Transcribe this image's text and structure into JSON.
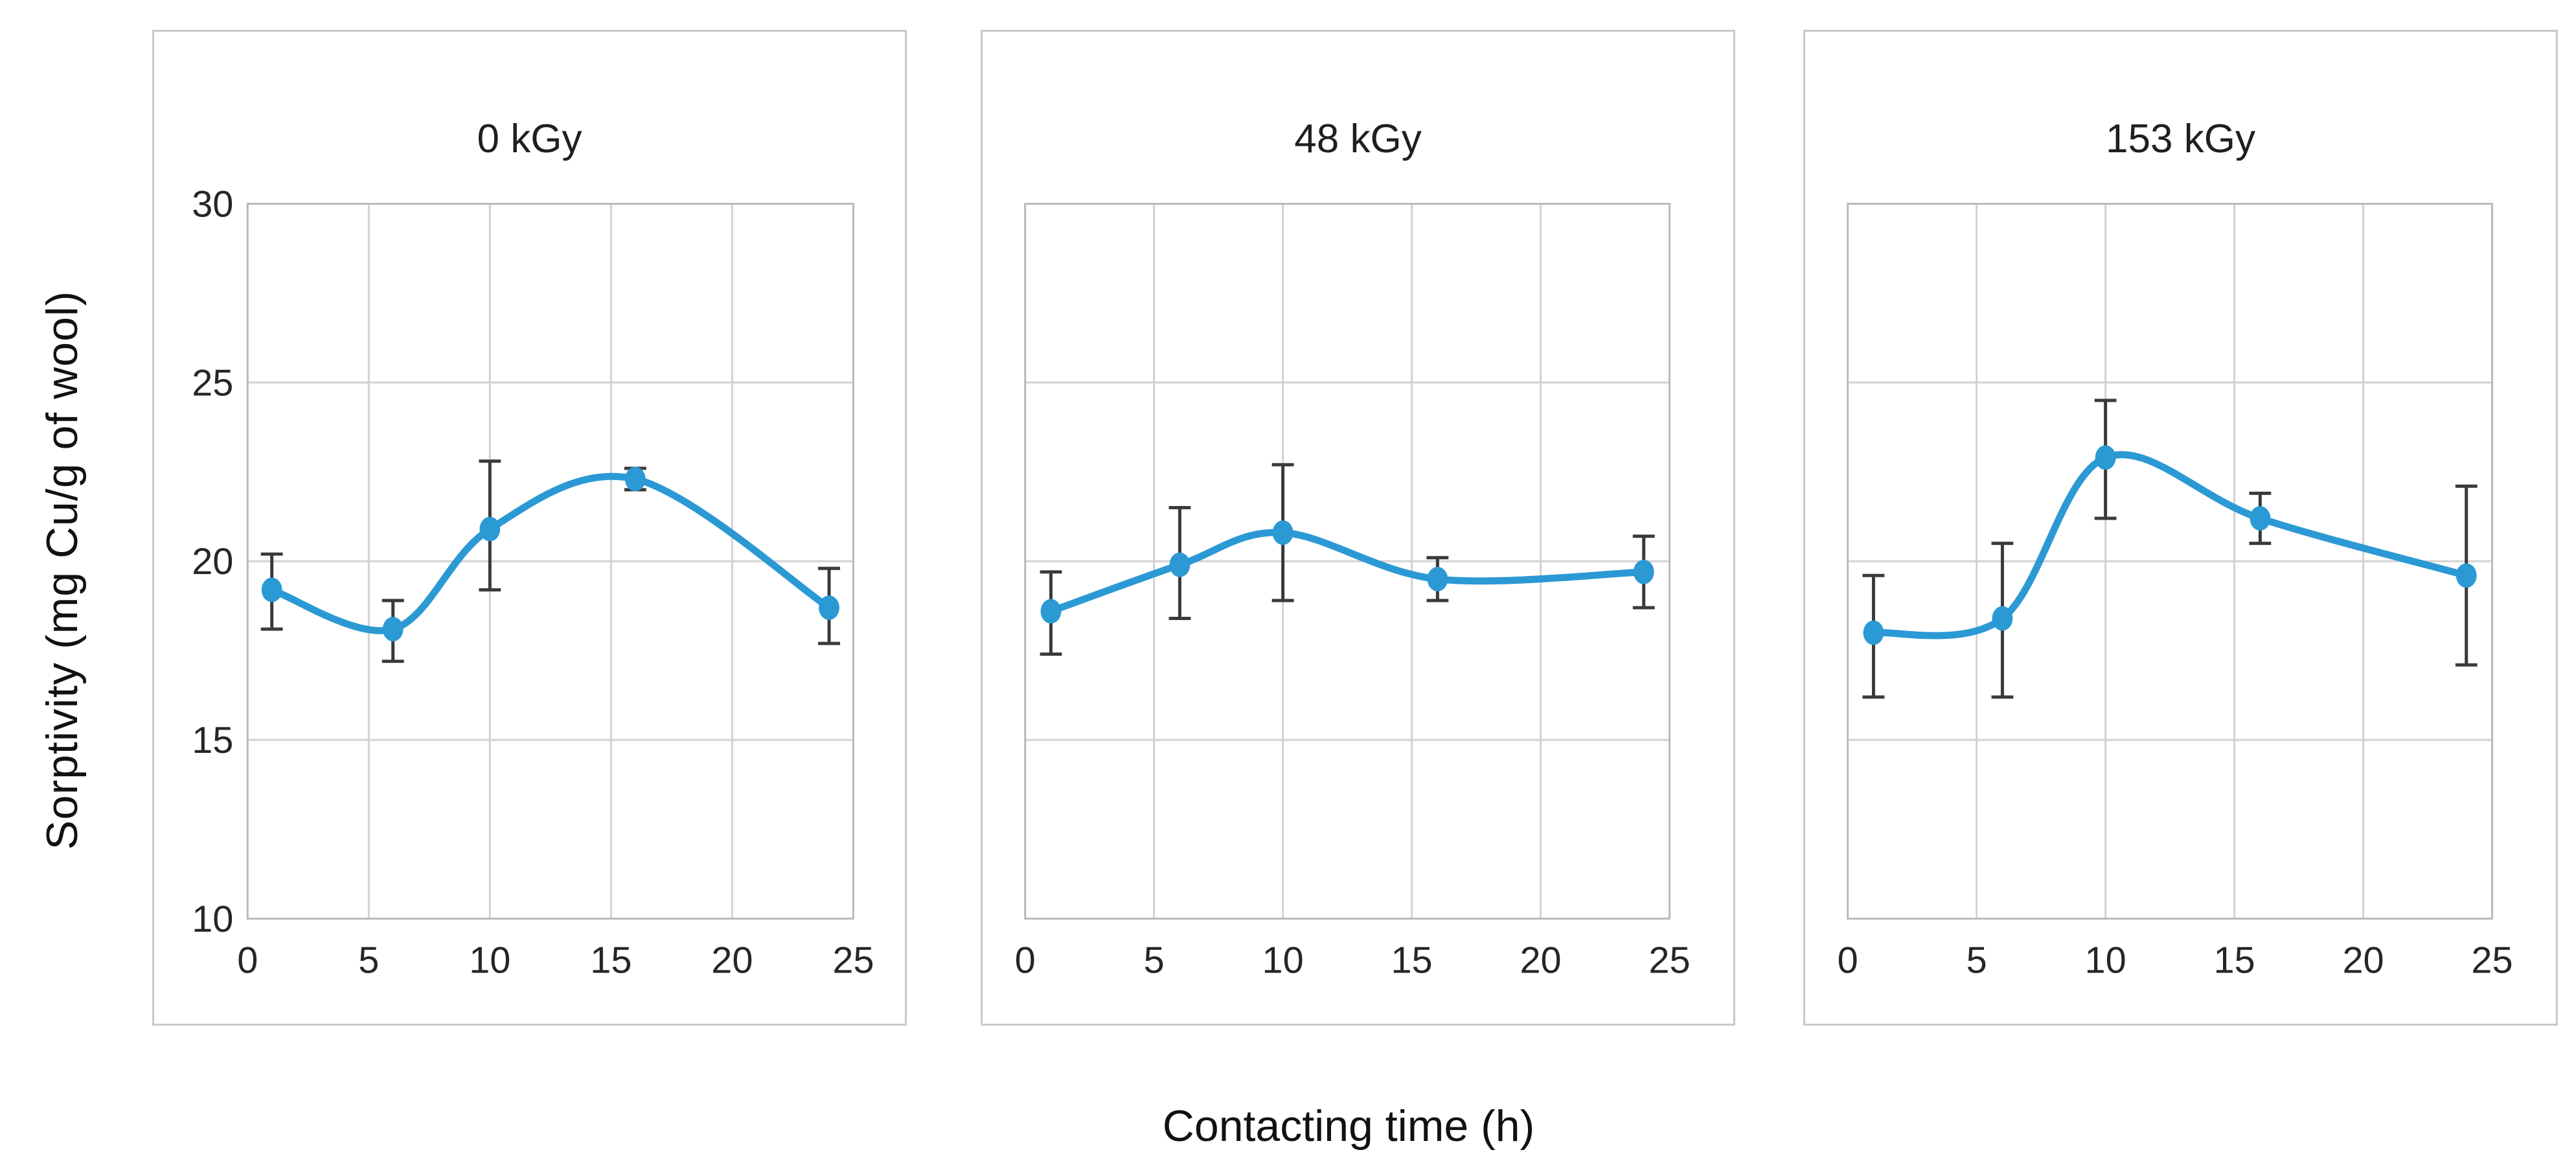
{
  "figure": {
    "ylabel": "Sorptivity (mg Cu/g of wool)",
    "xlabel": "Contacting time (h)"
  },
  "colors": {
    "series": "#2b99d4",
    "error_bar": "#3a3a3a",
    "grid": "#d2d2d2",
    "plot_border": "#b9b9b9",
    "panel_border": "#c9c9c9",
    "text": "#262626"
  },
  "chart_data": [
    {
      "type": "line",
      "title": "0 kGy",
      "xlabel": "Contacting time (h)",
      "ylabel": "Sorptivity (mg Cu/g of wool)",
      "x": [
        1,
        6,
        10,
        16,
        24
      ],
      "y": [
        19.2,
        18.1,
        20.9,
        22.3,
        18.7
      ],
      "err_up": [
        1.0,
        0.8,
        1.9,
        0.3,
        1.1
      ],
      "err_down": [
        1.1,
        0.9,
        1.7,
        0.3,
        1.0
      ],
      "xticks": [
        0,
        5,
        10,
        15,
        20,
        25
      ],
      "yticks": [
        30,
        25,
        20,
        15,
        10
      ],
      "xlim": [
        0,
        25
      ],
      "ylim": [
        10,
        30
      ],
      "grid": true,
      "smooth": true,
      "show_y_tick_labels": true
    },
    {
      "type": "line",
      "title": "48 kGy",
      "x": [
        1,
        6,
        10,
        16,
        24
      ],
      "y": [
        18.6,
        19.9,
        20.8,
        19.5,
        19.7
      ],
      "err_up": [
        1.1,
        1.6,
        1.9,
        0.6,
        1.0
      ],
      "err_down": [
        1.2,
        1.5,
        1.9,
        0.6,
        1.0
      ],
      "xticks": [
        0,
        5,
        10,
        15,
        20,
        25
      ],
      "yticks": [
        30,
        25,
        20,
        15,
        10
      ],
      "xlim": [
        0,
        25
      ],
      "ylim": [
        10,
        30
      ],
      "grid": true,
      "smooth": true,
      "show_y_tick_labels": false
    },
    {
      "type": "line",
      "title": "153 kGy",
      "x": [
        1,
        6,
        10,
        16,
        24
      ],
      "y": [
        18.0,
        18.4,
        22.9,
        21.2,
        19.6
      ],
      "err_up": [
        1.6,
        2.1,
        1.6,
        0.7,
        2.5
      ],
      "err_down": [
        1.8,
        2.2,
        1.7,
        0.7,
        2.5
      ],
      "xticks": [
        0,
        5,
        10,
        15,
        20,
        25
      ],
      "yticks": [
        30,
        25,
        20,
        15,
        10
      ],
      "xlim": [
        0,
        25
      ],
      "ylim": [
        10,
        30
      ],
      "grid": true,
      "smooth": true,
      "show_y_tick_labels": false
    }
  ]
}
